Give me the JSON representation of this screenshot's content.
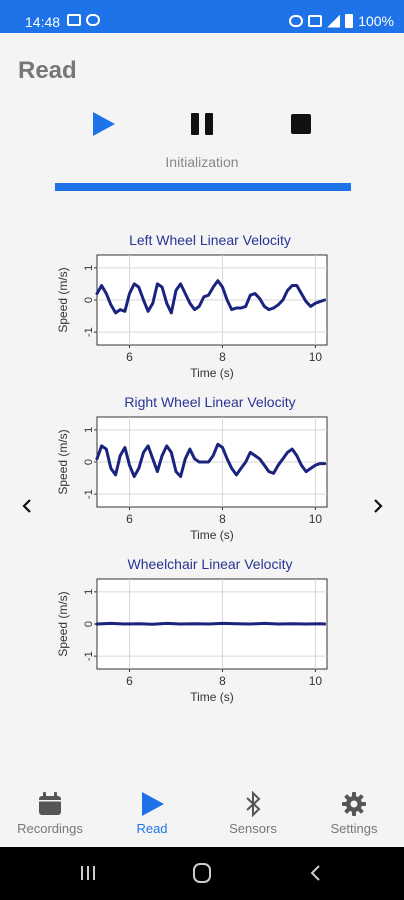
{
  "status_bar": {
    "time": "14:48",
    "battery": "100%"
  },
  "page": {
    "title": "Read"
  },
  "controls": {
    "status_text": "Initialization",
    "progress": 1.0
  },
  "colors": {
    "accent": "#1e73e8",
    "series": "#1a237e",
    "title": "#283593"
  },
  "icons": {
    "play": "play-icon",
    "pause": "pause-icon",
    "stop": "stop-icon",
    "prev": "chevron-left-icon",
    "next": "chevron-right-icon",
    "recordings": "calendar-icon",
    "read": "play-icon",
    "sensors": "bluetooth-icon",
    "settings": "gear-icon"
  },
  "charts": [
    {
      "type": "line",
      "title": "Left Wheel Linear Velocity",
      "xlabel": "Time (s)",
      "ylabel": "Speed (m/s)",
      "xlim": [
        5.3,
        10.25
      ],
      "ylim": [
        -1.4,
        1.4
      ],
      "xticks": [
        "6",
        "8",
        "10"
      ],
      "yticks": [
        "1",
        "0",
        "-1"
      ],
      "x": [
        5.3,
        5.4,
        5.5,
        5.6,
        5.7,
        5.8,
        5.9,
        6.0,
        6.1,
        6.2,
        6.3,
        6.4,
        6.5,
        6.6,
        6.7,
        6.8,
        6.9,
        7.0,
        7.1,
        7.2,
        7.3,
        7.4,
        7.5,
        7.6,
        7.7,
        7.8,
        7.9,
        8.0,
        8.1,
        8.2,
        8.3,
        8.4,
        8.5,
        8.6,
        8.7,
        8.8,
        8.9,
        9.0,
        9.1,
        9.2,
        9.3,
        9.4,
        9.5,
        9.6,
        9.7,
        9.8,
        9.9,
        10.0,
        10.1,
        10.2
      ],
      "y": [
        0.2,
        0.45,
        0.2,
        -0.15,
        -0.4,
        -0.3,
        -0.35,
        0.2,
        0.5,
        0.4,
        0.0,
        -0.35,
        -0.1,
        0.5,
        0.4,
        -0.1,
        -0.4,
        0.3,
        0.5,
        0.2,
        -0.1,
        -0.3,
        -0.2,
        0.1,
        0.15,
        0.4,
        0.6,
        0.4,
        0.0,
        -0.3,
        -0.25,
        -0.25,
        -0.2,
        0.15,
        0.2,
        0.05,
        -0.2,
        -0.3,
        -0.25,
        -0.15,
        0.0,
        0.3,
        0.45,
        0.45,
        0.2,
        -0.05,
        -0.2,
        -0.1,
        -0.05,
        0.0
      ]
    },
    {
      "type": "line",
      "title": "Right Wheel Linear Velocity",
      "xlabel": "Time (s)",
      "ylabel": "Speed (m/s)",
      "xlim": [
        5.3,
        10.25
      ],
      "ylim": [
        -1.4,
        1.4
      ],
      "xticks": [
        "6",
        "8",
        "10"
      ],
      "yticks": [
        "1",
        "0",
        "-1"
      ],
      "x": [
        5.3,
        5.4,
        5.5,
        5.6,
        5.7,
        5.8,
        5.9,
        6.0,
        6.1,
        6.2,
        6.3,
        6.4,
        6.5,
        6.6,
        6.7,
        6.8,
        6.9,
        7.0,
        7.1,
        7.2,
        7.3,
        7.4,
        7.5,
        7.6,
        7.7,
        7.8,
        7.9,
        8.0,
        8.1,
        8.2,
        8.3,
        8.4,
        8.5,
        8.6,
        8.7,
        8.8,
        8.9,
        9.0,
        9.1,
        9.2,
        9.3,
        9.4,
        9.5,
        9.6,
        9.7,
        9.8,
        9.9,
        10.0,
        10.1,
        10.2
      ],
      "y": [
        0.1,
        0.5,
        0.4,
        -0.2,
        -0.4,
        0.2,
        0.45,
        -0.1,
        -0.45,
        -0.2,
        0.3,
        0.5,
        0.1,
        -0.3,
        0.2,
        0.5,
        0.3,
        -0.3,
        -0.45,
        0.1,
        0.4,
        0.1,
        0.0,
        0.0,
        0.0,
        0.2,
        0.55,
        0.45,
        0.1,
        -0.2,
        -0.4,
        -0.2,
        0.0,
        0.3,
        0.2,
        0.1,
        -0.1,
        -0.3,
        -0.35,
        -0.1,
        0.1,
        0.3,
        0.4,
        0.2,
        -0.1,
        -0.3,
        -0.2,
        -0.1,
        -0.05,
        -0.05
      ]
    },
    {
      "type": "line",
      "title": "Wheelchair Linear Velocity",
      "xlabel": "Time (s)",
      "ylabel": "Speed (m/s)",
      "xlim": [
        5.3,
        10.25
      ],
      "ylim": [
        -1.4,
        1.4
      ],
      "xticks": [
        "6",
        "8",
        "10"
      ],
      "yticks": [
        "1",
        "0",
        "-1"
      ],
      "x": [
        5.3,
        5.6,
        5.9,
        6.2,
        6.5,
        6.8,
        7.1,
        7.4,
        7.7,
        8.0,
        8.3,
        8.6,
        8.9,
        9.2,
        9.5,
        9.8,
        10.1,
        10.2
      ],
      "y": [
        0.0,
        0.02,
        0.0,
        0.01,
        -0.01,
        0.02,
        0.0,
        0.01,
        0.0,
        0.02,
        0.01,
        0.0,
        0.02,
        0.0,
        0.01,
        0.0,
        0.01,
        0.0
      ]
    }
  ],
  "navigation": {
    "tabs": [
      {
        "label": "Recordings"
      },
      {
        "label": "Read"
      },
      {
        "label": "Sensors"
      },
      {
        "label": "Settings"
      }
    ]
  }
}
